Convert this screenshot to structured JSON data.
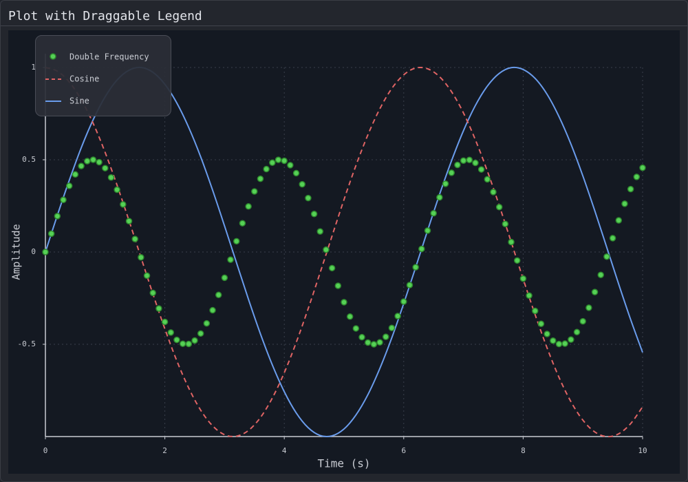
{
  "chart_data": {
    "type": "line",
    "title": "Plot with Draggable Legend",
    "xlabel": "Time (s)",
    "ylabel": "Amplitude",
    "xlim": [
      0,
      10
    ],
    "ylim": [
      -1,
      1
    ],
    "xticks": [
      0,
      2,
      4,
      6,
      8,
      10
    ],
    "yticks": [
      -0.5,
      0,
      0.5,
      1
    ],
    "grid": true,
    "legend_loc": "upper left",
    "series": [
      {
        "name": "Double Frequency",
        "color": "#56d156",
        "line_style": "none",
        "marker": "o",
        "x": [
          0,
          0.1,
          0.2,
          0.3,
          0.4,
          0.5,
          0.6,
          0.7,
          0.8,
          0.9,
          1,
          1.1,
          1.2,
          1.3,
          1.4,
          1.5,
          1.6,
          1.7,
          1.8,
          1.9,
          2,
          2.1,
          2.2,
          2.3,
          2.4,
          2.5,
          2.6,
          2.7,
          2.8,
          2.9,
          3,
          3.1,
          3.2,
          3.3,
          3.4,
          3.5,
          3.6,
          3.7,
          3.8,
          3.9,
          4,
          4.1,
          4.2,
          4.3,
          4.4,
          4.5,
          4.6,
          4.7,
          4.8,
          4.9,
          5,
          5.1,
          5.2,
          5.3,
          5.4,
          5.5,
          5.6,
          5.7,
          5.8,
          5.9,
          6,
          6.1,
          6.2,
          6.3,
          6.4,
          6.5,
          6.6,
          6.7,
          6.8,
          6.9,
          7,
          7.1,
          7.2,
          7.3,
          7.4,
          7.5,
          7.6,
          7.7,
          7.8,
          7.9,
          8,
          8.1,
          8.2,
          8.3,
          8.4,
          8.5,
          8.6,
          8.7,
          8.8,
          8.9,
          9,
          9.1,
          9.2,
          9.3,
          9.4,
          9.5,
          9.6,
          9.7,
          9.8,
          9.9,
          10
        ],
        "values": [
          0,
          0.0995,
          0.1945,
          0.2825,
          0.3585,
          0.4205,
          0.466,
          0.4925,
          0.5,
          0.487,
          0.4545,
          0.404,
          0.3375,
          0.258,
          0.1675,
          0.0705,
          -0.029,
          -0.128,
          -0.2215,
          -0.306,
          -0.3785,
          -0.436,
          -0.476,
          -0.497,
          -0.498,
          -0.4795,
          -0.4415,
          -0.3865,
          -0.3155,
          -0.2325,
          -0.1395,
          -0.0415,
          0.0585,
          0.156,
          0.247,
          0.3285,
          0.397,
          0.4495,
          0.484,
          0.4995,
          0.4945,
          0.4705,
          0.4275,
          0.367,
          0.2925,
          0.206,
          0.1115,
          0.0125,
          -0.087,
          -0.183,
          -0.272,
          -0.35,
          -0.414,
          -0.4615,
          -0.4905,
          -0.5,
          -0.4895,
          -0.4595,
          -0.4115,
          -0.347,
          -0.2685,
          -0.179,
          -0.0825,
          0.017,
          0.116,
          0.21,
          0.296,
          0.37,
          0.4295,
          0.472,
          0.4955,
          0.499,
          0.483,
          0.4475,
          0.394,
          0.325,
          0.2435,
          0.152,
          0.054,
          -0.046,
          -0.144,
          -0.236,
          -0.319,
          -0.389,
          -0.444,
          -0.4805,
          -0.4985,
          -0.4965,
          -0.4745,
          -0.434,
          -0.3755,
          -0.302,
          -0.217,
          -0.124,
          -0.025,
          0.075,
          0.1715,
          0.2615,
          0.341,
          0.407,
          0.4565
        ]
      },
      {
        "name": "Cosine",
        "color": "#e06464",
        "line_style": "dashed",
        "x": [
          0,
          0.2,
          0.4,
          0.6,
          0.8,
          1,
          1.2,
          1.4,
          1.6,
          1.8,
          2,
          2.2,
          2.4,
          2.6,
          2.8,
          3,
          3.2,
          3.4,
          3.6,
          3.8,
          4,
          4.2,
          4.4,
          4.6,
          4.8,
          5,
          5.2,
          5.4,
          5.6,
          5.8,
          6,
          6.2,
          6.4,
          6.6,
          6.8,
          7,
          7.2,
          7.4,
          7.6,
          7.8,
          8,
          8.2,
          8.4,
          8.6,
          8.8,
          9,
          9.2,
          9.4,
          9.6,
          9.8,
          10
        ],
        "values": [
          1,
          0.98,
          0.921,
          0.825,
          0.697,
          0.54,
          0.362,
          0.17,
          -0.029,
          -0.227,
          -0.416,
          -0.589,
          -0.737,
          -0.857,
          -0.942,
          -0.99,
          -0.998,
          -0.967,
          -0.897,
          -0.791,
          -0.654,
          -0.49,
          -0.307,
          -0.112,
          0.087,
          0.284,
          0.469,
          0.635,
          0.776,
          0.886,
          0.96,
          0.997,
          0.993,
          0.95,
          0.869,
          0.754,
          0.608,
          0.439,
          0.252,
          0.054,
          -0.146,
          -0.339,
          -0.519,
          -0.679,
          -0.811,
          -0.911,
          -0.975,
          -1,
          -0.985,
          -0.93,
          -0.839
        ]
      },
      {
        "name": "Sine",
        "color": "#6a9cec",
        "line_style": "solid",
        "x": [
          0,
          0.2,
          0.4,
          0.6,
          0.8,
          1,
          1.2,
          1.4,
          1.6,
          1.8,
          2,
          2.2,
          2.4,
          2.6,
          2.8,
          3,
          3.2,
          3.4,
          3.6,
          3.8,
          4,
          4.2,
          4.4,
          4.6,
          4.8,
          5,
          5.2,
          5.4,
          5.6,
          5.8,
          6,
          6.2,
          6.4,
          6.6,
          6.8,
          7,
          7.2,
          7.4,
          7.6,
          7.8,
          8,
          8.2,
          8.4,
          8.6,
          8.8,
          9,
          9.2,
          9.4,
          9.6,
          9.8,
          10
        ],
        "values": [
          0,
          0.199,
          0.389,
          0.565,
          0.717,
          0.841,
          0.932,
          0.985,
          1,
          0.974,
          0.909,
          0.808,
          0.675,
          0.516,
          0.335,
          0.141,
          -0.058,
          -0.256,
          -0.443,
          -0.612,
          -0.757,
          -0.872,
          -0.952,
          -0.994,
          -0.996,
          -0.959,
          -0.883,
          -0.773,
          -0.631,
          -0.465,
          -0.279,
          -0.083,
          0.117,
          0.312,
          0.494,
          0.657,
          0.794,
          0.899,
          0.968,
          0.999,
          0.989,
          0.941,
          0.855,
          0.734,
          0.585,
          0.412,
          0.223,
          0.025,
          -0.174,
          -0.366,
          -0.544
        ]
      }
    ]
  }
}
